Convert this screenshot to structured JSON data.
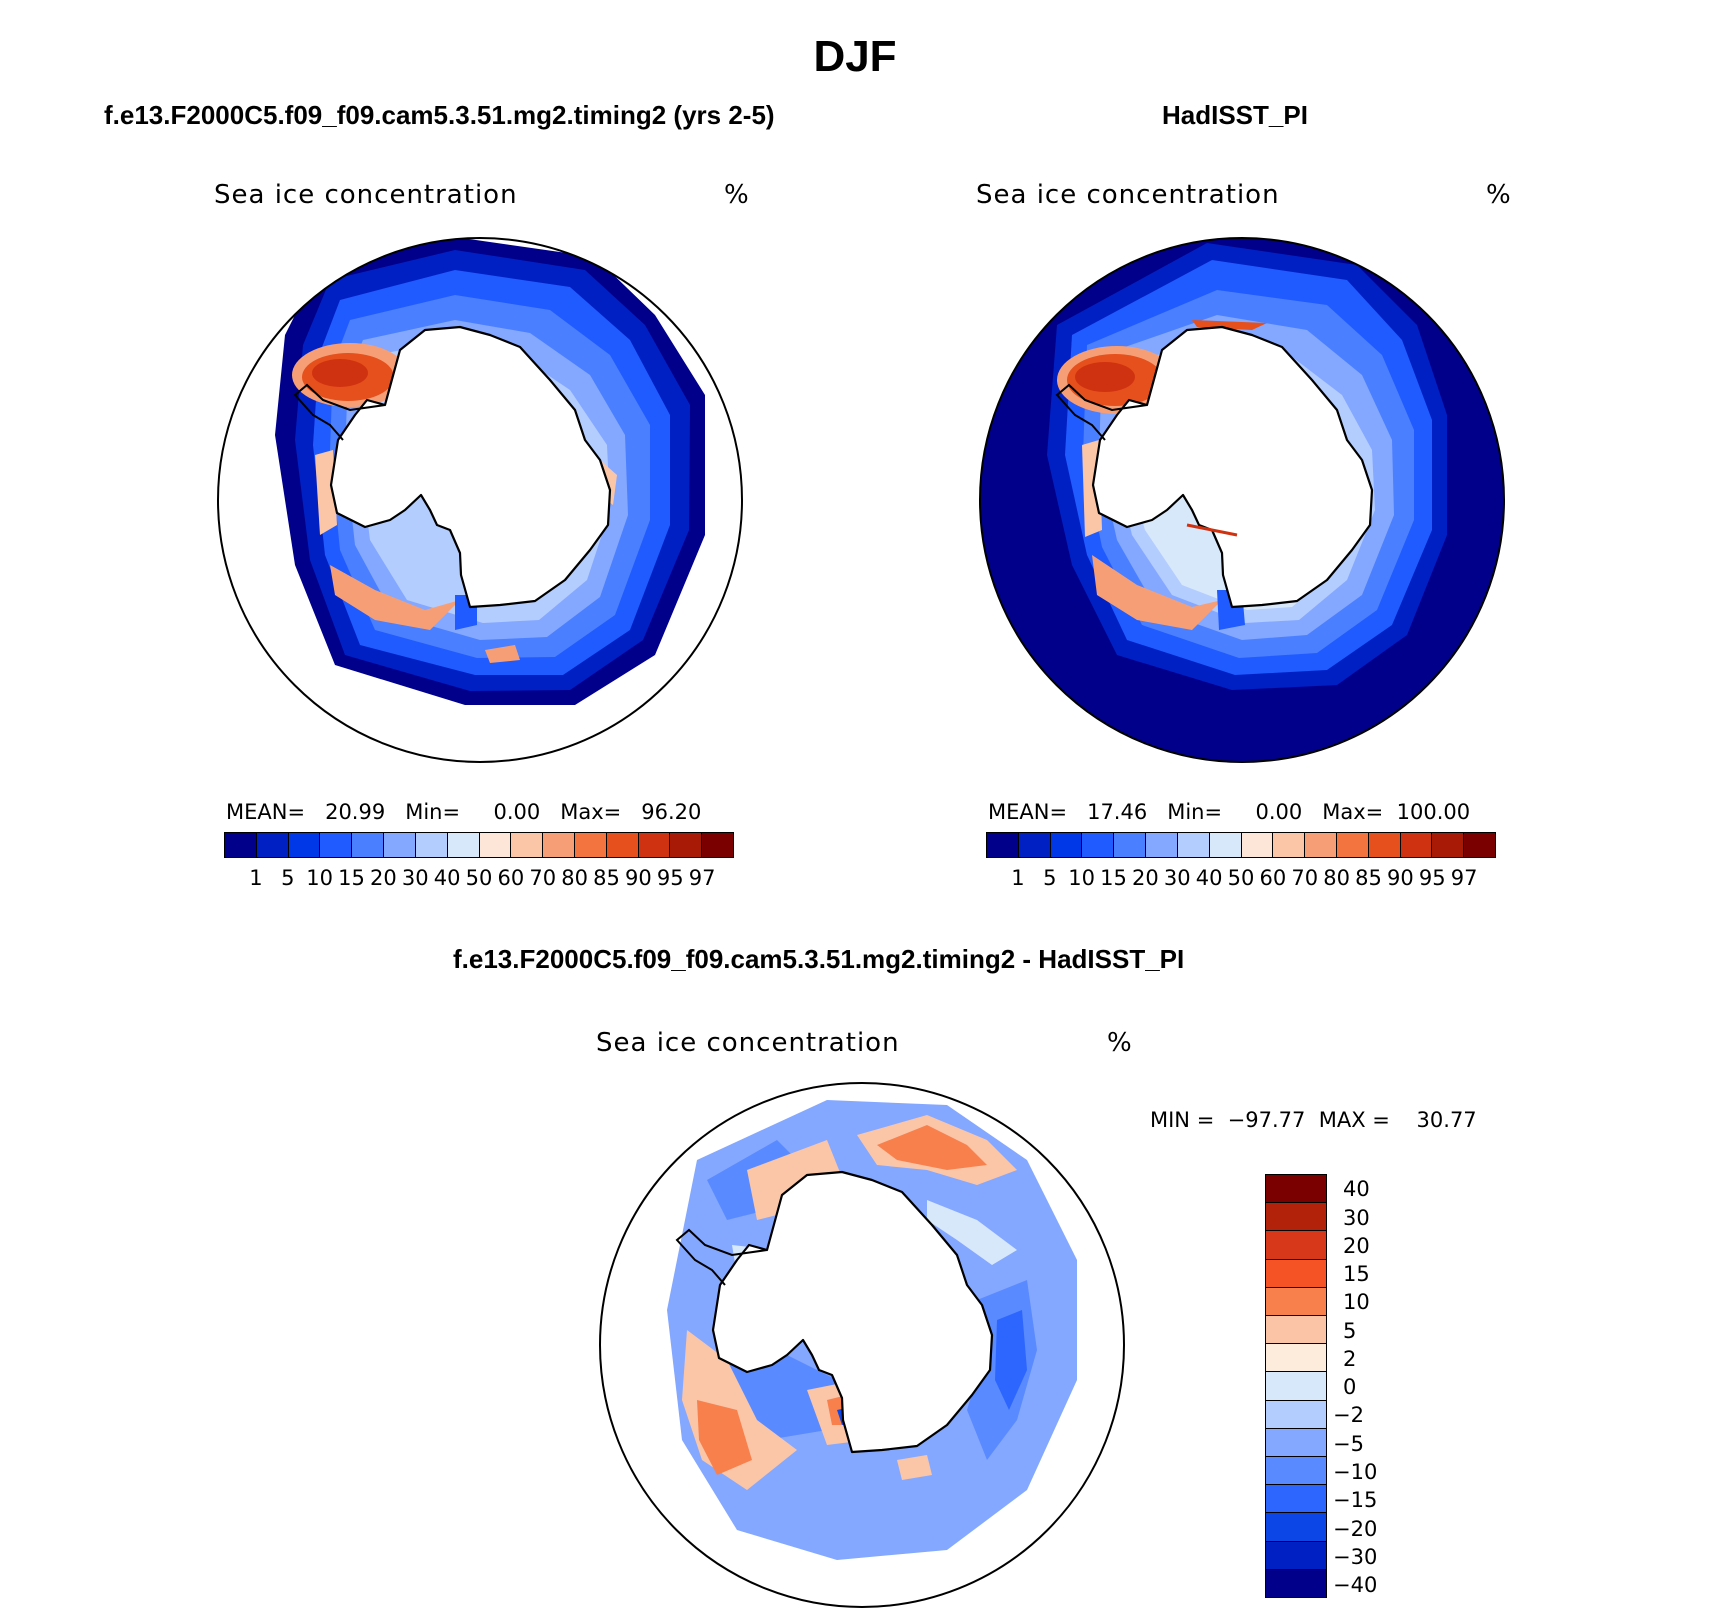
{
  "figure_title": "DJF",
  "colors": {
    "seq": [
      "#00008b",
      "#0020c4",
      "#0038e8",
      "#1f5bff",
      "#4a7fff",
      "#84a8ff",
      "#b4cdff",
      "#d8e8fb",
      "#fde6d8",
      "#fbc6a8",
      "#f69f76",
      "#f3743f",
      "#e6501c",
      "#cf3210",
      "#a81a06",
      "#7a0000"
    ],
    "div": [
      "#7a0000",
      "#b2220a",
      "#d8381a",
      "#f55325",
      "#f8804c",
      "#fbc4a6",
      "#fdebdb",
      "#d8e8fb",
      "#b4cdff",
      "#84a8ff",
      "#5a8aff",
      "#2c66ff",
      "#0c46e6",
      "#0020c4",
      "#00008b"
    ]
  },
  "panel_model": {
    "title": "f.e13.F2000C5.f09_f09.cam5.3.51.mg2.timing2 (yrs 2-5)",
    "variable": "Sea ice concentration",
    "units": "%",
    "stats_text": "MEAN=   20.99   Min=     0.00   Max=   96.20",
    "labels": [
      "1",
      "5",
      "10",
      "15",
      "20",
      "30",
      "40",
      "50",
      "60",
      "70",
      "80",
      "85",
      "90",
      "95",
      "97"
    ]
  },
  "panel_obs": {
    "title": "HadISST_PI",
    "variable": "Sea ice concentration",
    "units": "%",
    "stats_text": "MEAN=   17.46   Min=     0.00   Max=  100.00",
    "labels": [
      "1",
      "5",
      "10",
      "15",
      "20",
      "30",
      "40",
      "50",
      "60",
      "70",
      "80",
      "85",
      "90",
      "95",
      "97"
    ]
  },
  "panel_diff": {
    "title": "f.e13.F2000C5.f09_f09.cam5.3.51.mg2.timing2 - HadISST_PI",
    "variable": "Sea ice concentration",
    "units": "%",
    "minmax_text": "MIN =  −97.77  MAX =    30.77",
    "labels": [
      "40",
      "30",
      "20",
      "15",
      "10",
      "5",
      "2",
      "0",
      "−2",
      "−5",
      "−10",
      "−15",
      "−20",
      "−30",
      "−40"
    ]
  }
}
